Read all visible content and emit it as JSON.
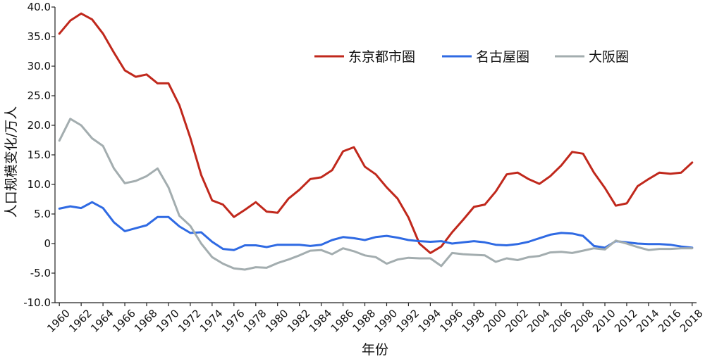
{
  "chart_data": {
    "type": "line",
    "xlabel": "年份",
    "ylabel": "人口规模变化/万人",
    "ylim": [
      -10,
      40
    ],
    "yticks": [
      "-10.0",
      "-5.0",
      "0",
      "5.0",
      "10.0",
      "15.0",
      "20.0",
      "25.0",
      "30.0",
      "35.0",
      "40.0"
    ],
    "xlim": [
      1959.6,
      2018.4
    ],
    "xticks": [
      "1960",
      "1962",
      "1964",
      "1966",
      "1968",
      "1970",
      "1972",
      "1974",
      "1976",
      "1978",
      "1980",
      "1982",
      "1984",
      "1986",
      "1988",
      "1990",
      "1992",
      "1994",
      "1996",
      "1998",
      "2000",
      "2002",
      "2004",
      "2006",
      "2008",
      "2010",
      "2012",
      "2014",
      "2016",
      "2018"
    ],
    "legend_position": "top-right",
    "grid": false,
    "x": [
      1960,
      1961,
      1962,
      1963,
      1964,
      1965,
      1966,
      1967,
      1968,
      1969,
      1970,
      1971,
      1972,
      1973,
      1974,
      1975,
      1976,
      1977,
      1978,
      1979,
      1980,
      1981,
      1982,
      1983,
      1984,
      1985,
      1986,
      1987,
      1988,
      1989,
      1990,
      1991,
      1992,
      1993,
      1994,
      1995,
      1996,
      1997,
      1998,
      1999,
      2000,
      2001,
      2002,
      2003,
      2004,
      2005,
      2006,
      2007,
      2008,
      2009,
      2010,
      2011,
      2012,
      2013,
      2014,
      2015,
      2016,
      2017,
      2018
    ],
    "series": [
      {
        "name": "东京都市圈",
        "color": "#c0281c",
        "values": [
          35.5,
          37.7,
          38.9,
          37.9,
          35.5,
          32.3,
          29.3,
          28.2,
          28.6,
          27.1,
          27.1,
          23.4,
          17.9,
          11.6,
          7.3,
          6.6,
          4.5,
          5.7,
          7.0,
          5.4,
          5.2,
          7.6,
          9.1,
          10.9,
          11.2,
          12.4,
          15.6,
          16.3,
          13.0,
          11.7,
          9.5,
          7.6,
          4.4,
          0.0,
          -1.6,
          -0.5,
          1.9,
          4.0,
          6.2,
          6.6,
          8.8,
          11.7,
          12.0,
          10.9,
          10.1,
          11.4,
          13.2,
          15.5,
          15.2,
          12.0,
          9.4,
          6.4,
          6.8,
          9.7,
          10.9,
          12.0,
          11.8,
          12.0,
          13.7
        ]
      },
      {
        "name": "名古屋圈",
        "color": "#2f6ae3",
        "values": [
          5.9,
          6.3,
          6.0,
          7.0,
          6.0,
          3.6,
          2.1,
          2.6,
          3.1,
          4.5,
          4.5,
          2.9,
          1.8,
          1.9,
          0.3,
          -0.9,
          -1.1,
          -0.3,
          -0.3,
          -0.6,
          -0.2,
          -0.2,
          -0.2,
          -0.4,
          -0.2,
          0.6,
          1.1,
          0.9,
          0.6,
          1.1,
          1.3,
          1.0,
          0.6,
          0.4,
          0.3,
          0.4,
          0.0,
          0.2,
          0.4,
          0.2,
          -0.2,
          -0.3,
          -0.1,
          0.3,
          0.9,
          1.5,
          1.8,
          1.7,
          1.3,
          -0.4,
          -0.7,
          0.4,
          0.2,
          0.0,
          -0.1,
          -0.1,
          -0.2,
          -0.5,
          -0.7
        ]
      },
      {
        "name": "大阪圈",
        "color": "#a3adaf",
        "values": [
          17.4,
          21.1,
          20.0,
          17.8,
          16.5,
          12.7,
          10.2,
          10.6,
          11.4,
          12.7,
          9.5,
          4.7,
          3.0,
          0.0,
          -2.3,
          -3.4,
          -4.2,
          -4.4,
          -4.0,
          -4.1,
          -3.3,
          -2.7,
          -2.0,
          -1.2,
          -1.1,
          -1.8,
          -0.8,
          -1.3,
          -2.0,
          -2.3,
          -3.4,
          -2.7,
          -2.4,
          -2.5,
          -2.5,
          -3.8,
          -1.6,
          -1.8,
          -1.9,
          -2.0,
          -3.1,
          -2.5,
          -2.8,
          -2.3,
          -2.1,
          -1.5,
          -1.4,
          -1.6,
          -1.2,
          -0.8,
          -1.0,
          0.5,
          0.0,
          -0.6,
          -1.1,
          -0.9,
          -0.9,
          -0.8,
          -0.8
        ]
      }
    ]
  }
}
